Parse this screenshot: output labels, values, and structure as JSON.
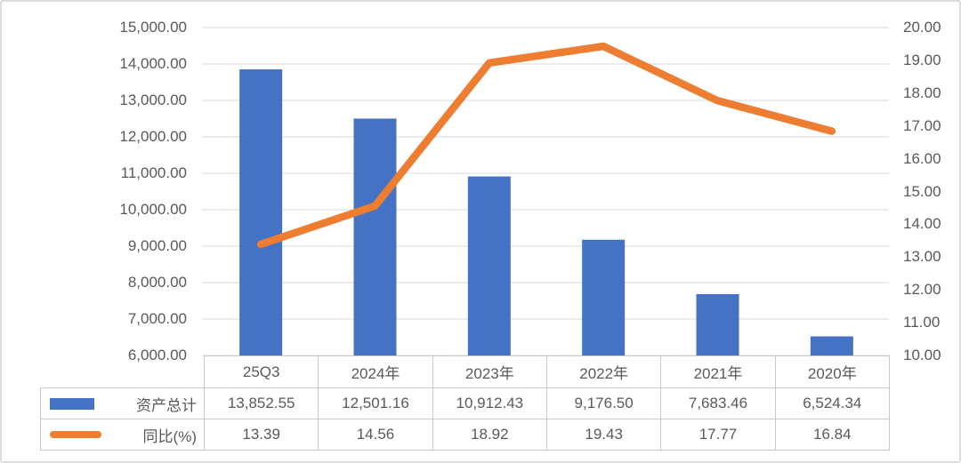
{
  "chart_data": {
    "type": "combo",
    "categories": [
      "25Q3",
      "2024年",
      "2023年",
      "2022年",
      "2021年",
      "2020年"
    ],
    "series": [
      {
        "name": "资产总计",
        "type": "bar",
        "axis": "left",
        "values": [
          13852.55,
          12501.16,
          10912.43,
          9176.5,
          7683.46,
          6524.34
        ]
      },
      {
        "name": "同比(%)",
        "type": "line",
        "axis": "right",
        "values": [
          13.39,
          14.56,
          18.92,
          19.43,
          17.77,
          16.84
        ]
      }
    ],
    "left_axis": {
      "min": 6000,
      "max": 15000,
      "step": 1000,
      "tick_labels": [
        "15,000.00",
        "14,000.00",
        "13,000.00",
        "12,000.00",
        "11,000.00",
        "10,000.00",
        "9,000.00",
        "8,000.00",
        "7,000.00",
        "6,000.00"
      ]
    },
    "right_axis": {
      "min": 10,
      "max": 20,
      "step": 1,
      "tick_labels": [
        "20.00",
        "19.00",
        "18.00",
        "17.00",
        "16.00",
        "15.00",
        "14.00",
        "13.00",
        "12.00",
        "11.00",
        "10.00"
      ]
    },
    "grid": true,
    "legend_position": "table-left",
    "title": "",
    "xlabel": "",
    "ylabel": ""
  },
  "table": {
    "header": [
      "25Q3",
      "2024年",
      "2023年",
      "2022年",
      "2021年",
      "2020年"
    ],
    "rows": [
      {
        "swatch": "bar",
        "label": "资产总计",
        "values": [
          "13,852.55",
          "12,501.16",
          "10,912.43",
          "9,176.50",
          "7,683.46",
          "6,524.34"
        ]
      },
      {
        "swatch": "line",
        "label": "同比(%)",
        "values": [
          "13.39",
          "14.56",
          "18.92",
          "19.43",
          "17.77",
          "16.84"
        ]
      }
    ]
  },
  "colors": {
    "bar": "#4472C4",
    "line": "#ED7D31",
    "grid": "#dadada",
    "text": "#595959",
    "table_border": "#c9c9c9",
    "page_border": "#dcdcdc"
  }
}
